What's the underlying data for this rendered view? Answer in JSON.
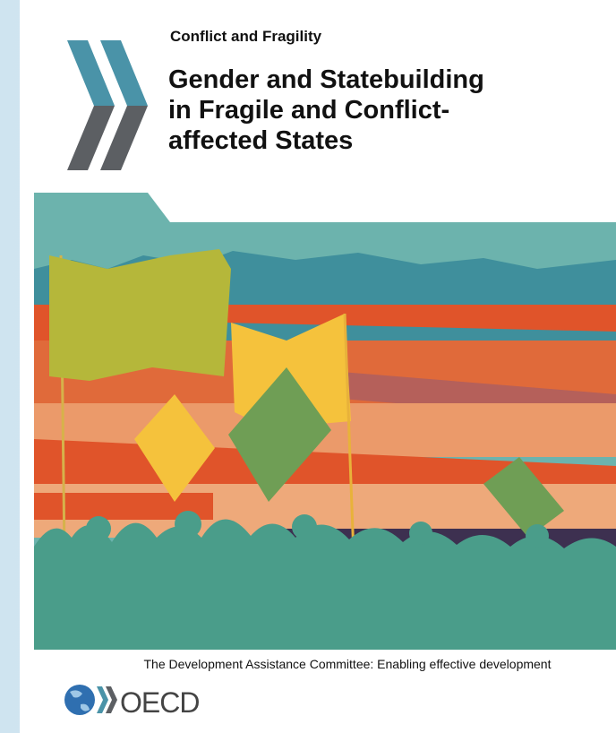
{
  "cover": {
    "series": "Conflict and Fragility",
    "title_lines": [
      "Gender and Statebuilding",
      "in Fragile and Conflict-",
      "affected States"
    ],
    "tagline": "The Development Assistance Committee: Enabling effective development",
    "publisher": "OECD"
  }
}
